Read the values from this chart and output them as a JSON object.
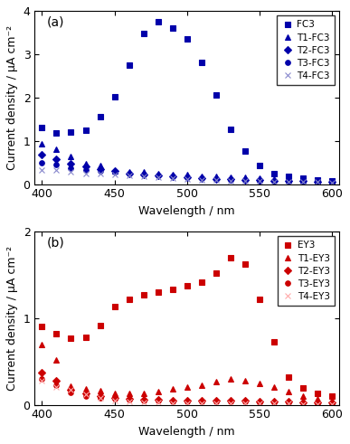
{
  "panel_a": {
    "title": "(a)",
    "xlabel": "Wavelength / nm",
    "ylabel": "Current density / μA cm⁻²",
    "xlim": [
      395,
      605
    ],
    "ylim": [
      0,
      4
    ],
    "yticks": [
      0,
      1,
      2,
      3,
      4
    ],
    "xticks": [
      400,
      450,
      500,
      550,
      600
    ],
    "FC3": {
      "wavelengths": [
        400,
        410,
        420,
        430,
        440,
        450,
        460,
        470,
        480,
        490,
        500,
        510,
        520,
        530,
        540,
        550,
        560,
        570,
        580,
        590,
        600
      ],
      "values": [
        1.3,
        1.18,
        1.2,
        1.25,
        1.55,
        2.02,
        2.75,
        3.47,
        3.75,
        3.6,
        3.35,
        2.8,
        2.05,
        1.27,
        0.77,
        0.43,
        0.24,
        0.17,
        0.14,
        0.1,
        0.07
      ],
      "marker": "s",
      "color": "#0000aa",
      "label": "FC3",
      "markersize": 5,
      "markerfacecolor": "#0000aa"
    },
    "T1_FC3": {
      "wavelengths": [
        400,
        410,
        420,
        430,
        440,
        450,
        460,
        470,
        480,
        490,
        500,
        510,
        520,
        530,
        540,
        550,
        560,
        570,
        580,
        590,
        600
      ],
      "values": [
        0.93,
        0.8,
        0.64,
        0.48,
        0.43,
        0.3,
        0.28,
        0.28,
        0.25,
        0.22,
        0.22,
        0.18,
        0.17,
        0.16,
        0.15,
        0.13,
        0.11,
        0.1,
        0.09,
        0.08,
        0.07
      ],
      "marker": "^",
      "color": "#0000aa",
      "label": "T1-FC3",
      "markersize": 5,
      "markerfacecolor": "#0000aa"
    },
    "T2_FC3": {
      "wavelengths": [
        400,
        410,
        420,
        430,
        440,
        450,
        460,
        470,
        480,
        490,
        500,
        510,
        520,
        530,
        540,
        550,
        560,
        570,
        580,
        590,
        600
      ],
      "values": [
        0.67,
        0.58,
        0.48,
        0.4,
        0.35,
        0.3,
        0.25,
        0.23,
        0.2,
        0.17,
        0.15,
        0.13,
        0.12,
        0.11,
        0.1,
        0.09,
        0.08,
        0.07,
        0.07,
        0.06,
        0.06
      ],
      "marker": "D",
      "color": "#0000aa",
      "label": "T2-FC3",
      "markersize": 4,
      "markerfacecolor": "#0000aa"
    },
    "T3_FC3": {
      "wavelengths": [
        400,
        410,
        420,
        430,
        440,
        450,
        460,
        470,
        480,
        490,
        500,
        510,
        520,
        530,
        540,
        550,
        560,
        570,
        580,
        590,
        600
      ],
      "values": [
        0.5,
        0.45,
        0.37,
        0.32,
        0.3,
        0.28,
        0.24,
        0.22,
        0.2,
        0.18,
        0.15,
        0.13,
        0.11,
        0.1,
        0.09,
        0.08,
        0.07,
        0.07,
        0.06,
        0.06,
        0.05
      ],
      "marker": "o",
      "color": "#0000aa",
      "label": "T3-FC3",
      "markersize": 4,
      "markerfacecolor": "#0000aa"
    },
    "T4_FC3": {
      "wavelengths": [
        400,
        410,
        420,
        430,
        440,
        450,
        460,
        470,
        480,
        490,
        500,
        510,
        520,
        530,
        540,
        550,
        560,
        570,
        580,
        590,
        600
      ],
      "values": [
        0.32,
        0.33,
        0.28,
        0.25,
        0.24,
        0.22,
        0.2,
        0.18,
        0.16,
        0.14,
        0.12,
        0.1,
        0.09,
        0.08,
        0.07,
        0.07,
        0.06,
        0.06,
        0.05,
        0.05,
        0.04
      ],
      "marker": "x",
      "color": "#8888cc",
      "label": "T4-FC3",
      "markersize": 5,
      "markerfacecolor": "#8888cc"
    }
  },
  "panel_b": {
    "title": "(b)",
    "xlabel": "Wavelength / nm",
    "ylabel": "Current density / μA cm⁻²",
    "xlim": [
      395,
      605
    ],
    "ylim": [
      0,
      2
    ],
    "yticks": [
      0,
      1,
      2
    ],
    "xticks": [
      400,
      450,
      500,
      550,
      600
    ],
    "EY3": {
      "wavelengths": [
        400,
        410,
        420,
        430,
        440,
        450,
        460,
        470,
        480,
        490,
        500,
        510,
        520,
        530,
        540,
        550,
        560,
        570,
        580,
        590,
        600
      ],
      "values": [
        0.9,
        0.82,
        0.77,
        0.78,
        0.92,
        1.13,
        1.22,
        1.27,
        1.3,
        1.33,
        1.37,
        1.42,
        1.52,
        1.7,
        1.62,
        1.22,
        0.73,
        0.32,
        0.19,
        0.13,
        0.1
      ],
      "marker": "s",
      "color": "#cc0000",
      "label": "EY3",
      "markersize": 5,
      "markerfacecolor": "#cc0000"
    },
    "T1_EY3": {
      "wavelengths": [
        400,
        410,
        420,
        430,
        440,
        450,
        460,
        470,
        480,
        490,
        500,
        510,
        520,
        530,
        540,
        550,
        560,
        570,
        580,
        590,
        600
      ],
      "values": [
        0.7,
        0.52,
        0.22,
        0.18,
        0.16,
        0.13,
        0.13,
        0.13,
        0.15,
        0.18,
        0.2,
        0.23,
        0.27,
        0.3,
        0.28,
        0.25,
        0.2,
        0.15,
        0.1,
        0.07,
        0.05
      ],
      "marker": "^",
      "color": "#cc0000",
      "label": "T1-EY3",
      "markersize": 5,
      "markerfacecolor": "#cc0000"
    },
    "T2_EY3": {
      "wavelengths": [
        400,
        410,
        420,
        430,
        440,
        450,
        460,
        470,
        480,
        490,
        500,
        510,
        520,
        530,
        540,
        550,
        560,
        570,
        580,
        590,
        600
      ],
      "values": [
        0.37,
        0.28,
        0.17,
        0.13,
        0.1,
        0.08,
        0.07,
        0.06,
        0.06,
        0.05,
        0.05,
        0.05,
        0.05,
        0.05,
        0.05,
        0.04,
        0.04,
        0.04,
        0.03,
        0.03,
        0.03
      ],
      "marker": "D",
      "color": "#cc0000",
      "label": "T2-EY3",
      "markersize": 4,
      "markerfacecolor": "#cc0000"
    },
    "T3_EY3": {
      "wavelengths": [
        400,
        410,
        420,
        430,
        440,
        450,
        460,
        470,
        480,
        490,
        500,
        510,
        520,
        530,
        540,
        550,
        560,
        570,
        580,
        590,
        600
      ],
      "values": [
        0.3,
        0.23,
        0.14,
        0.1,
        0.08,
        0.07,
        0.06,
        0.05,
        0.05,
        0.04,
        0.04,
        0.04,
        0.04,
        0.04,
        0.04,
        0.03,
        0.03,
        0.03,
        0.03,
        0.02,
        0.02
      ],
      "marker": "o",
      "color": "#cc0000",
      "label": "T3-EY3",
      "markersize": 4,
      "markerfacecolor": "#cc0000"
    },
    "T4_EY3": {
      "wavelengths": [
        400,
        410,
        420,
        430,
        440,
        450,
        460,
        470,
        480,
        490,
        500,
        510,
        520,
        530,
        540,
        550,
        560,
        570,
        580,
        590,
        600
      ],
      "values": [
        0.28,
        0.2,
        0.17,
        0.12,
        0.08,
        0.05,
        0.04,
        0.03,
        0.03,
        0.02,
        0.02,
        0.02,
        0.02,
        0.02,
        0.02,
        0.02,
        0.02,
        0.02,
        0.01,
        0.01,
        0.01
      ],
      "marker": "x",
      "color": "#ffaaaa",
      "label": "T4-EY3",
      "markersize": 5,
      "markerfacecolor": "#ffaaaa"
    }
  },
  "background_color": "#ffffff"
}
